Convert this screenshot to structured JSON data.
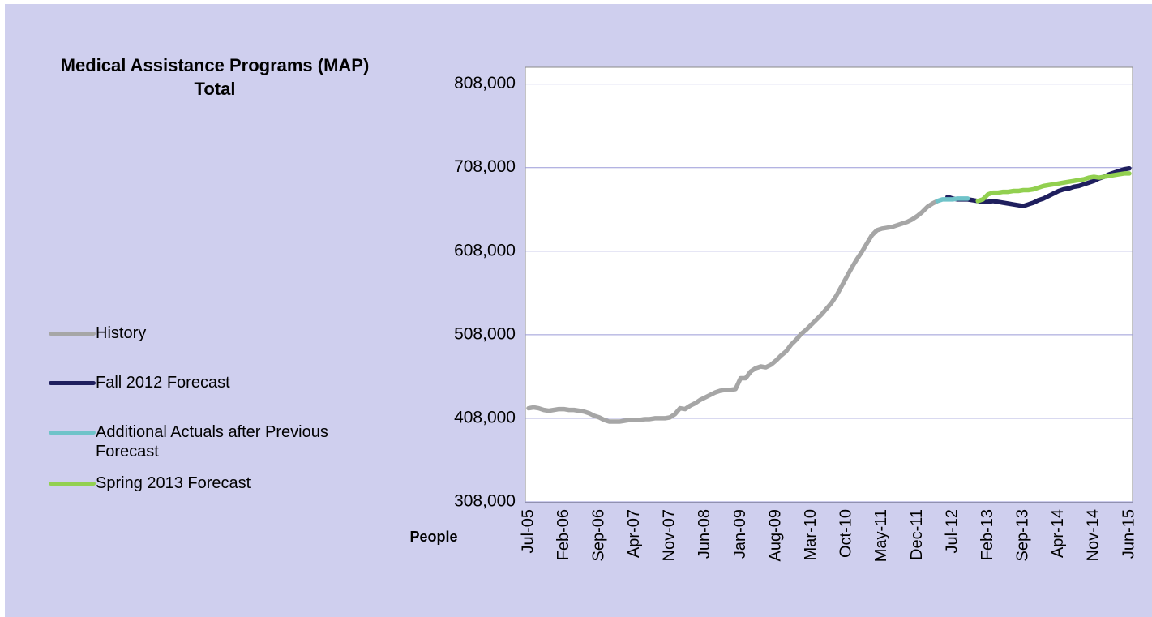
{
  "chart_data": {
    "type": "line",
    "title": "Medical Assistance Programs (MAP)  Total",
    "y_label": "People",
    "categories": [
      "Jul-05",
      null,
      null,
      null,
      null,
      null,
      null,
      "Feb-06",
      null,
      null,
      null,
      null,
      null,
      null,
      "Sep-06",
      null,
      null,
      null,
      null,
      null,
      null,
      "Apr-07",
      null,
      null,
      null,
      null,
      null,
      null,
      "Nov-07",
      null,
      null,
      null,
      null,
      null,
      null,
      "Jun-08",
      null,
      null,
      null,
      null,
      null,
      null,
      "Jan-09",
      null,
      null,
      null,
      null,
      null,
      null,
      "Aug-09",
      null,
      null,
      null,
      null,
      null,
      null,
      "Mar-10",
      null,
      null,
      null,
      null,
      null,
      null,
      "Oct-10",
      null,
      null,
      null,
      null,
      null,
      null,
      "May-11",
      null,
      null,
      null,
      null,
      null,
      null,
      "Dec-11",
      null,
      null,
      null,
      null,
      null,
      null,
      "Jul-12",
      null,
      null,
      null,
      null,
      null,
      null,
      "Feb-13",
      null,
      null,
      null,
      null,
      null,
      null,
      "Sep-13",
      null,
      null,
      null,
      null,
      null,
      null,
      "Apr-14",
      null,
      null,
      null,
      null,
      null,
      null,
      "Nov-14",
      null,
      null,
      null,
      null,
      null,
      null,
      "Jun-15"
    ],
    "series": [
      {
        "name": "History",
        "color": "#a6a6a6",
        "values": [
          420000,
          421000,
          420000,
          418000,
          417000,
          418000,
          419000,
          419000,
          418000,
          418000,
          417000,
          416000,
          414000,
          411000,
          409000,
          406000,
          404000,
          404000,
          404000,
          405000,
          406000,
          406000,
          406000,
          407000,
          407000,
          408000,
          408000,
          408000,
          409000,
          413000,
          420000,
          419000,
          423000,
          426000,
          430000,
          433000,
          436000,
          439000,
          441000,
          442000,
          442000,
          443000,
          456000,
          456000,
          464000,
          468000,
          470000,
          469000,
          472000,
          477000,
          483000,
          488000,
          496000,
          502000,
          509000,
          514000,
          520000,
          526000,
          532000,
          539000,
          546000,
          555000,
          566000,
          577000,
          588000,
          598000,
          607000,
          617000,
          627000,
          633000,
          635000,
          636000,
          637000,
          639000,
          641000,
          643000,
          646000,
          650000,
          655000,
          661000,
          665000,
          668000,
          null,
          null,
          null,
          null,
          null,
          null,
          null,
          null,
          null,
          null,
          null,
          null,
          null,
          null,
          null,
          null,
          null,
          null,
          null,
          null,
          null,
          null,
          null,
          null,
          null,
          null,
          null,
          null,
          null,
          null,
          null,
          null,
          null,
          null,
          null,
          null,
          null,
          null
        ]
      },
      {
        "name": "Fall 2012 Forecast",
        "color": "#1f1f5e",
        "values": [
          null,
          null,
          null,
          null,
          null,
          null,
          null,
          null,
          null,
          null,
          null,
          null,
          null,
          null,
          null,
          null,
          null,
          null,
          null,
          null,
          null,
          null,
          null,
          null,
          null,
          null,
          null,
          null,
          null,
          null,
          null,
          null,
          null,
          null,
          null,
          null,
          null,
          null,
          null,
          null,
          null,
          null,
          null,
          null,
          null,
          null,
          null,
          null,
          null,
          null,
          null,
          null,
          null,
          null,
          null,
          null,
          null,
          null,
          null,
          null,
          null,
          null,
          null,
          null,
          null,
          null,
          null,
          null,
          null,
          null,
          null,
          null,
          null,
          null,
          null,
          null,
          null,
          null,
          null,
          null,
          null,
          null,
          null,
          673000,
          671000,
          670000,
          670000,
          670000,
          669000,
          668000,
          667000,
          667000,
          668000,
          667000,
          666000,
          665000,
          664000,
          663000,
          662000,
          664000,
          666000,
          669000,
          671000,
          674000,
          677000,
          680000,
          682000,
          683000,
          685000,
          686000,
          688000,
          690000,
          692000,
          695000,
          697000,
          700000,
          702000,
          704000,
          706000,
          707000
        ]
      },
      {
        "name": "Additional Actuals after Previous Forecast",
        "color": "#6fc3c9",
        "values": [
          null,
          null,
          null,
          null,
          null,
          null,
          null,
          null,
          null,
          null,
          null,
          null,
          null,
          null,
          null,
          null,
          null,
          null,
          null,
          null,
          null,
          null,
          null,
          null,
          null,
          null,
          null,
          null,
          null,
          null,
          null,
          null,
          null,
          null,
          null,
          null,
          null,
          null,
          null,
          null,
          null,
          null,
          null,
          null,
          null,
          null,
          null,
          null,
          null,
          null,
          null,
          null,
          null,
          null,
          null,
          null,
          null,
          null,
          null,
          null,
          null,
          null,
          null,
          null,
          null,
          null,
          null,
          null,
          null,
          null,
          null,
          null,
          null,
          null,
          null,
          null,
          null,
          null,
          null,
          null,
          null,
          668000,
          670000,
          670000,
          670000,
          671000,
          671000,
          671000,
          null,
          null,
          null,
          null,
          null,
          null,
          null,
          null,
          null,
          null,
          null,
          null,
          null,
          null,
          null,
          null,
          null,
          null,
          null,
          null,
          null,
          null,
          null,
          null,
          null,
          null,
          null,
          null,
          null,
          null,
          null,
          null
        ]
      },
      {
        "name": "Spring 2013 Forecast",
        "color": "#92d050",
        "values": [
          null,
          null,
          null,
          null,
          null,
          null,
          null,
          null,
          null,
          null,
          null,
          null,
          null,
          null,
          null,
          null,
          null,
          null,
          null,
          null,
          null,
          null,
          null,
          null,
          null,
          null,
          null,
          null,
          null,
          null,
          null,
          null,
          null,
          null,
          null,
          null,
          null,
          null,
          null,
          null,
          null,
          null,
          null,
          null,
          null,
          null,
          null,
          null,
          null,
          null,
          null,
          null,
          null,
          null,
          null,
          null,
          null,
          null,
          null,
          null,
          null,
          null,
          null,
          null,
          null,
          null,
          null,
          null,
          null,
          null,
          null,
          null,
          null,
          null,
          null,
          null,
          null,
          null,
          null,
          null,
          null,
          null,
          null,
          null,
          null,
          null,
          null,
          null,
          null,
          668000,
          670000,
          676000,
          678000,
          678000,
          679000,
          679000,
          680000,
          680000,
          681000,
          681000,
          682000,
          684000,
          686000,
          687000,
          688000,
          689000,
          690000,
          691000,
          692000,
          693000,
          694000,
          696000,
          697000,
          696000,
          697000,
          698000,
          699000,
          700000,
          701000,
          701000
        ]
      }
    ],
    "ylim": [
      308000,
      828000
    ],
    "yticks": [
      {
        "value": 308000,
        "label": "308,000"
      },
      {
        "value": 408000,
        "label": "408,000"
      },
      {
        "value": 508000,
        "label": "508,000"
      },
      {
        "value": 608000,
        "label": "608,000"
      },
      {
        "value": 708000,
        "label": "708,000"
      },
      {
        "value": 808000,
        "label": "808,000"
      }
    ],
    "grid": true,
    "legend": "left"
  }
}
